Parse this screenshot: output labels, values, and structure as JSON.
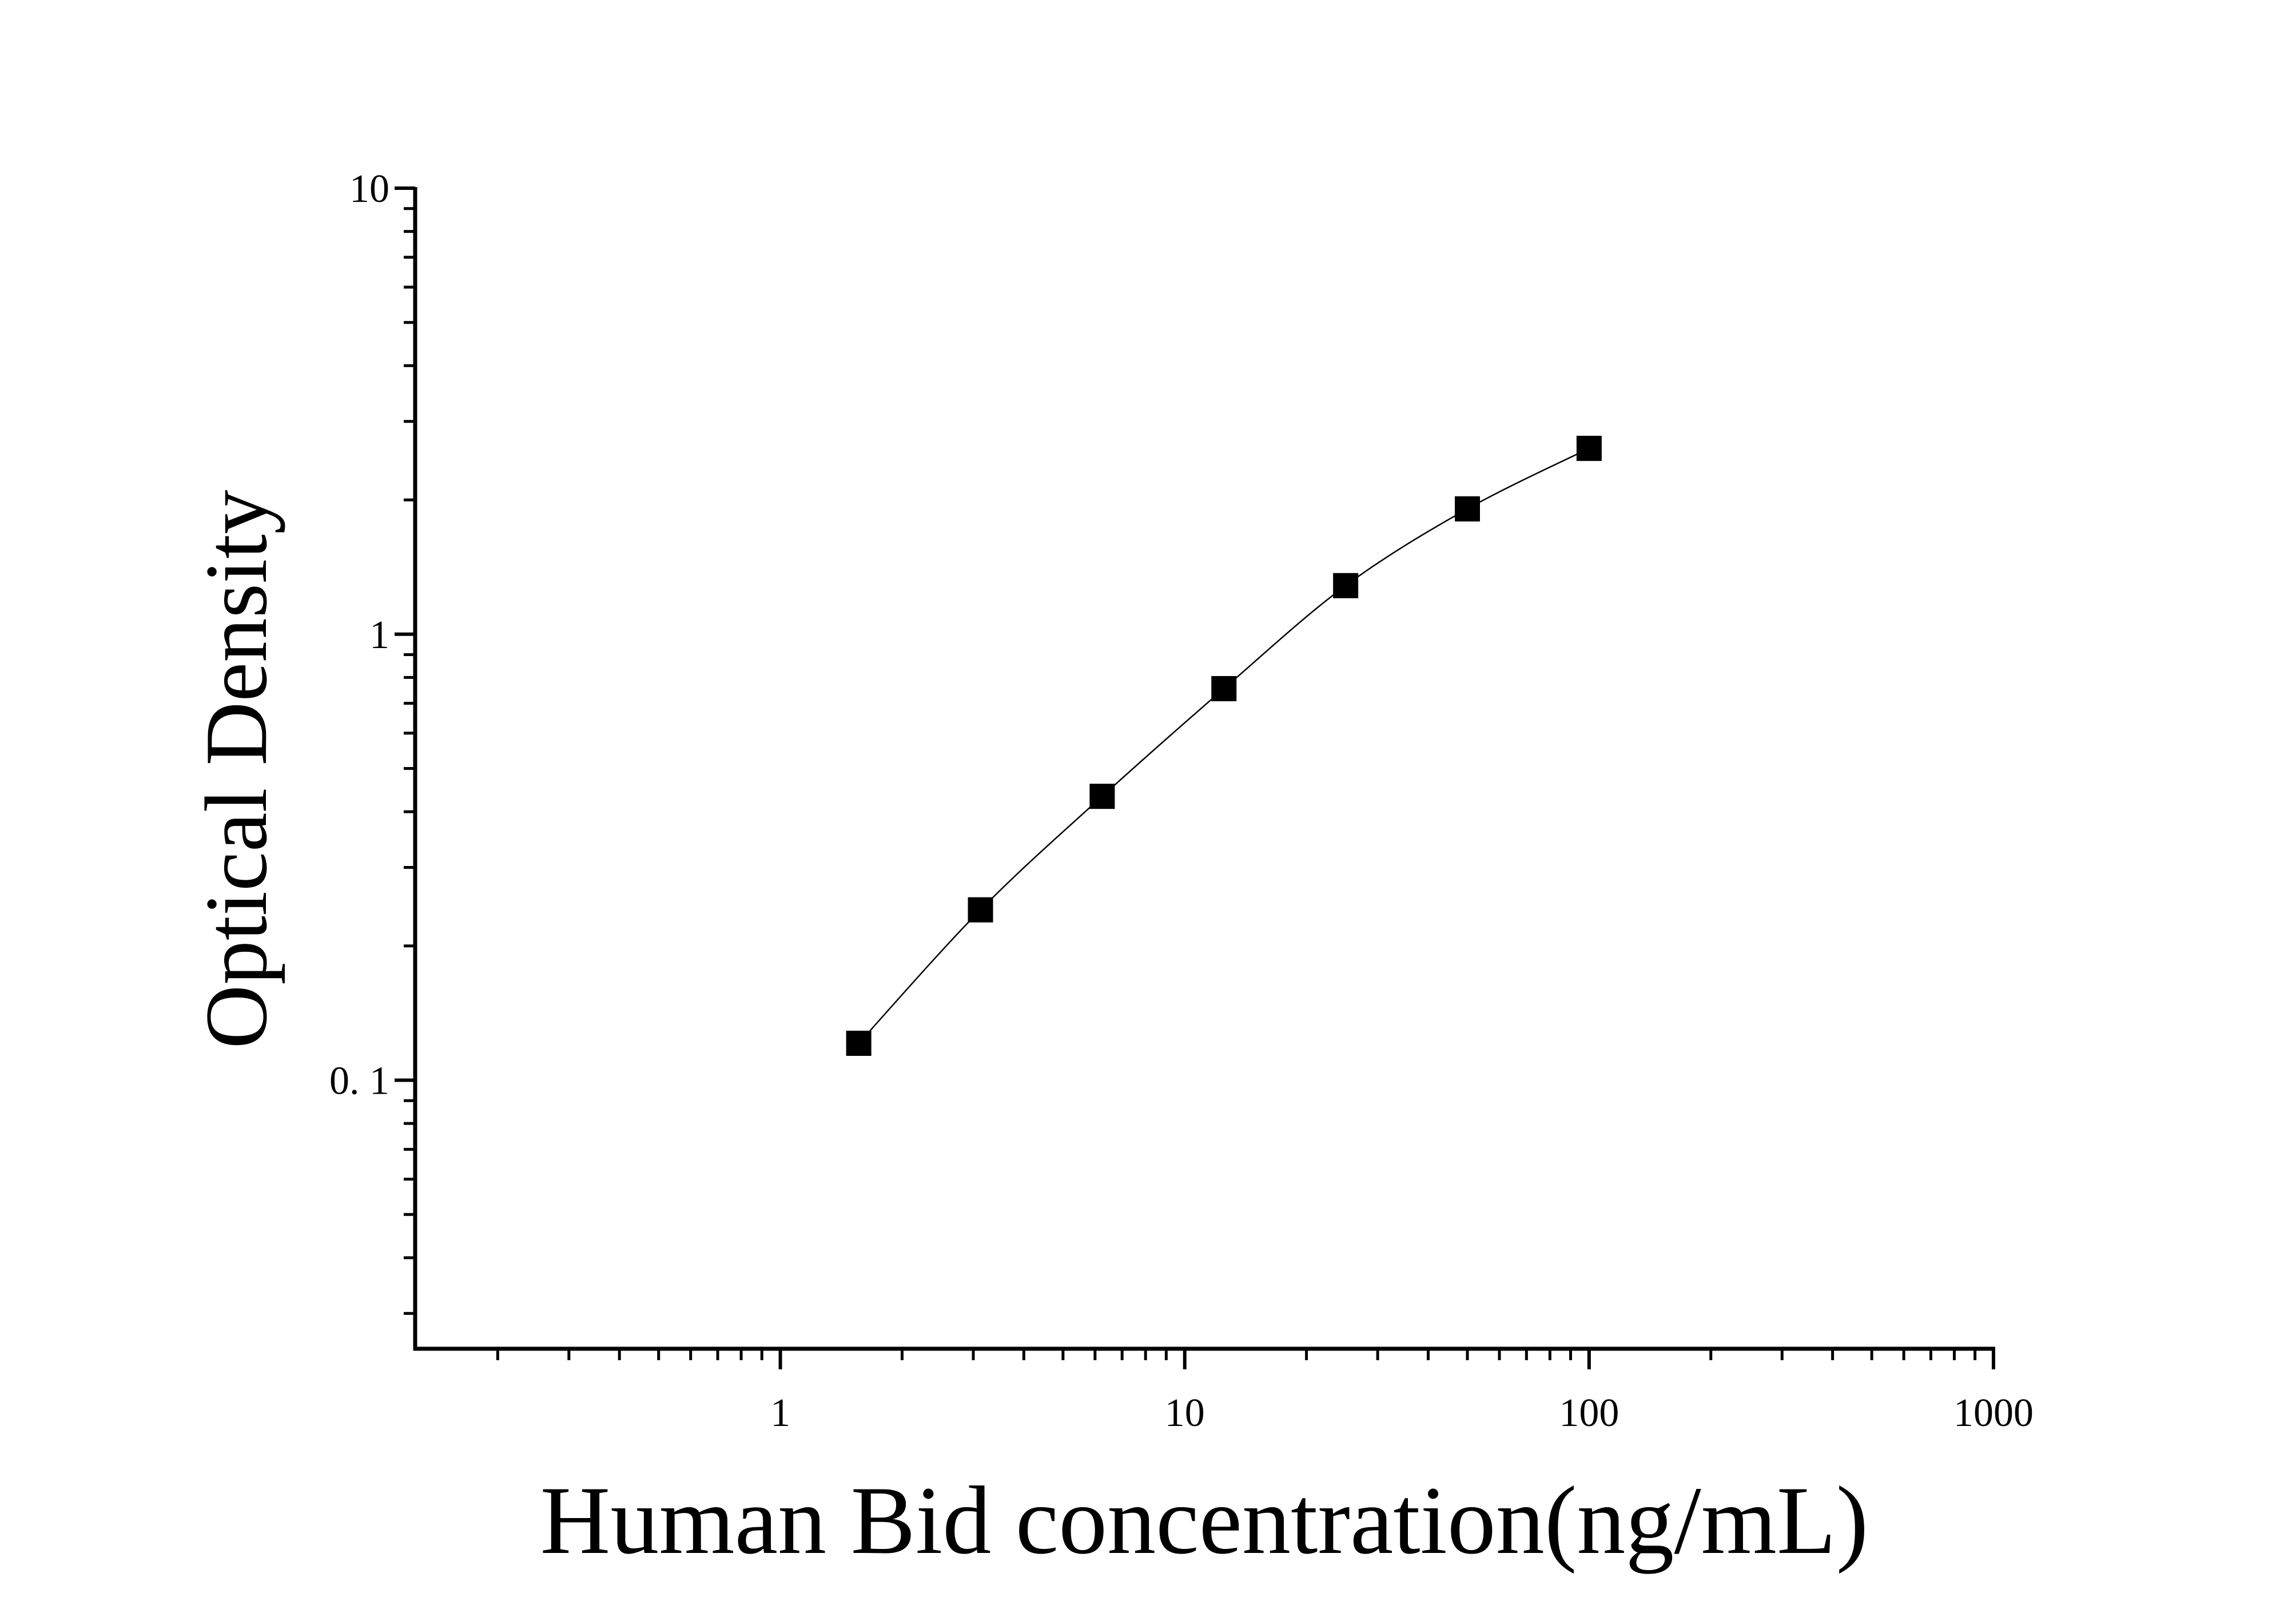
{
  "chart_data": {
    "type": "scatter",
    "title": "",
    "xlabel": "Human Bid concentration(ng/mL)",
    "ylabel": "Optical Density",
    "x_scale": "log",
    "y_scale": "log",
    "xlim": [
      0.125,
      1000
    ],
    "ylim": [
      0.025,
      10
    ],
    "x_ticks": [
      {
        "value": 1,
        "label": "1"
      },
      {
        "value": 10,
        "label": "10"
      },
      {
        "value": 100,
        "label": "100"
      },
      {
        "value": 1000,
        "label": "1000"
      }
    ],
    "y_ticks": [
      {
        "value": 0.1,
        "label": "0. 1"
      },
      {
        "value": 1,
        "label": "1"
      },
      {
        "value": 10,
        "label": "10"
      }
    ],
    "grid": false,
    "marker": "square",
    "color": "#000000",
    "fit_curve": true,
    "series": [
      {
        "x": [
          1.5625,
          3.125,
          6.25,
          12.5,
          25,
          50,
          100
        ],
        "y": [
          0.121,
          0.241,
          0.433,
          0.755,
          1.285,
          1.91,
          2.61
        ]
      }
    ]
  }
}
